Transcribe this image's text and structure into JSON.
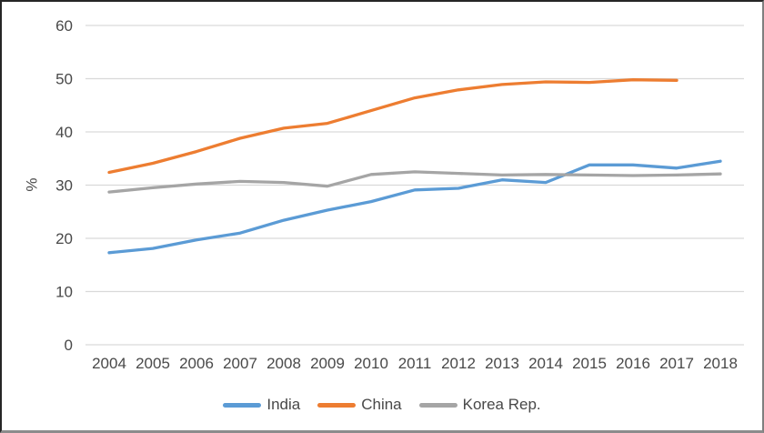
{
  "chart_data": {
    "type": "line",
    "title": "",
    "xlabel": "",
    "ylabel": "%",
    "x": [
      "2004",
      "2005",
      "2006",
      "2007",
      "2008",
      "2009",
      "2010",
      "2011",
      "2012",
      "2013",
      "2014",
      "2015",
      "2016",
      "2017",
      "2018"
    ],
    "series": [
      {
        "name": "India",
        "color": "#5B9BD5",
        "values": [
          17.3,
          18.1,
          19.7,
          21.0,
          23.4,
          25.3,
          26.9,
          29.1,
          29.4,
          31.0,
          30.5,
          33.8,
          33.8,
          33.2,
          34.5
        ]
      },
      {
        "name": "China",
        "color": "#ED7D31",
        "values": [
          32.4,
          34.1,
          36.3,
          38.8,
          40.7,
          41.6,
          44.0,
          46.4,
          47.9,
          48.9,
          49.4,
          49.3,
          49.8,
          49.7,
          null
        ]
      },
      {
        "name": "Korea Rep.",
        "color": "#A5A5A5",
        "values": [
          28.7,
          29.5,
          30.2,
          30.7,
          30.5,
          29.8,
          32.0,
          32.5,
          32.2,
          31.9,
          32.0,
          31.9,
          31.8,
          31.9,
          32.1
        ]
      }
    ],
    "ylim": [
      0,
      60
    ],
    "ytick_interval": 10,
    "yticks": [
      "0",
      "10",
      "20",
      "30",
      "40",
      "50",
      "60"
    ],
    "grid": "horizontal",
    "legend_position": "bottom",
    "styles": {
      "axis_text_color": "#494949",
      "gridline_color": "#D9D9D9",
      "background": "#FFFFFF",
      "line_width": 3.3
    }
  }
}
